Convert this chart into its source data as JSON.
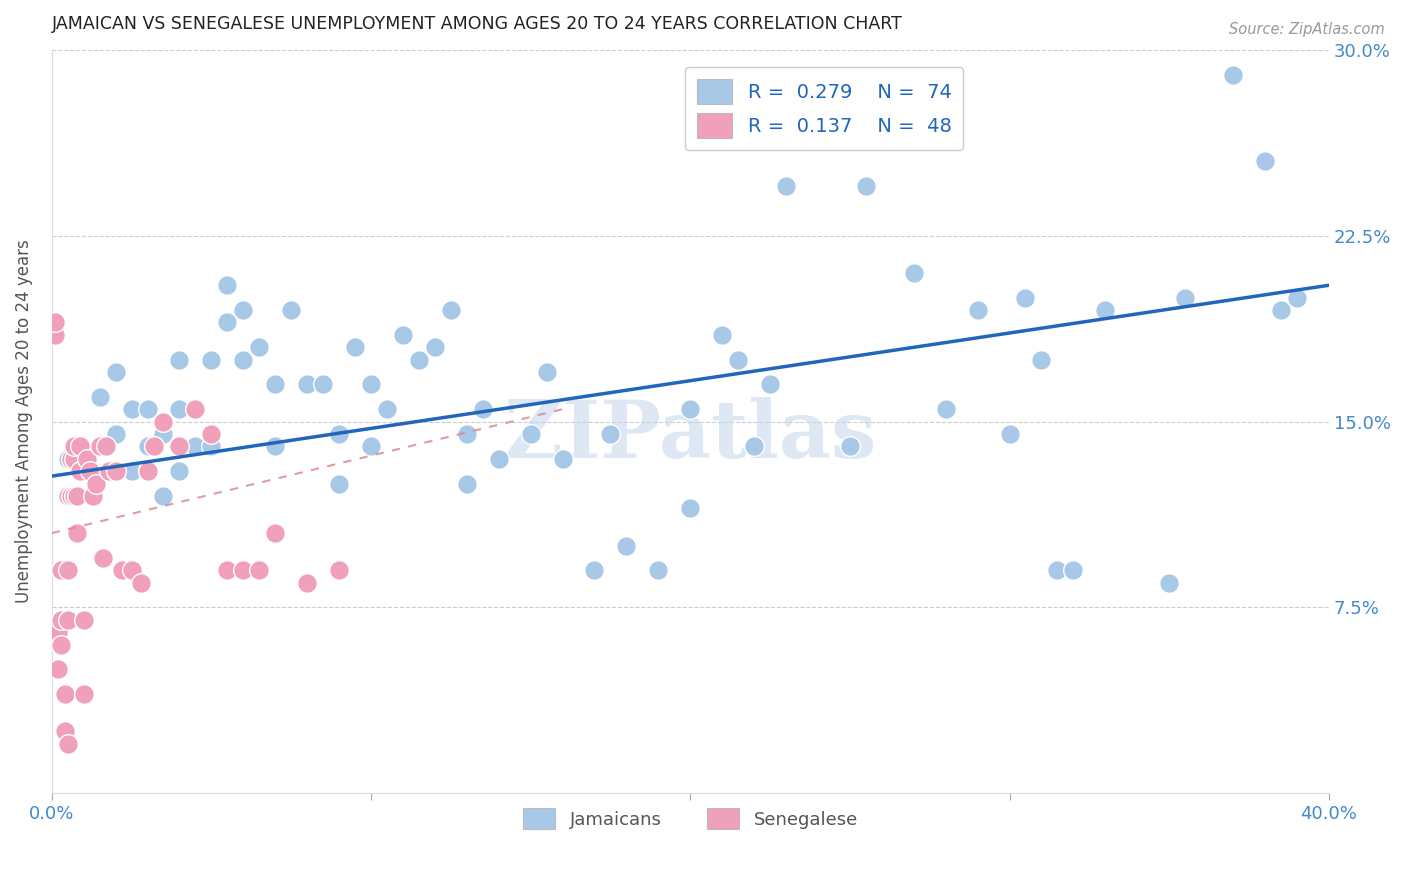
{
  "title": "JAMAICAN VS SENEGALESE UNEMPLOYMENT AMONG AGES 20 TO 24 YEARS CORRELATION CHART",
  "source": "Source: ZipAtlas.com",
  "ylabel": "Unemployment Among Ages 20 to 24 years",
  "xlabel_jamaicans": "Jamaicans",
  "xlabel_senegalese": "Senegalese",
  "xmin": 0.0,
  "xmax": 0.4,
  "ymin": 0.0,
  "ymax": 0.3,
  "ytick_positions": [
    0.0,
    0.075,
    0.15,
    0.225,
    0.3
  ],
  "ytick_labels_right": [
    "",
    "7.5%",
    "15.0%",
    "22.5%",
    "30.0%"
  ],
  "xtick_positions": [
    0.0,
    0.1,
    0.2,
    0.3,
    0.4
  ],
  "xtick_labels": [
    "0.0%",
    "",
    "",
    "",
    "40.0%"
  ],
  "legend_r1": "0.279",
  "legend_n1": "74",
  "legend_r2": "0.137",
  "legend_n2": "48",
  "blue_scatter_color": "#a8c8e8",
  "pink_scatter_color": "#f0a0b8",
  "blue_line_color": "#2266bb",
  "pink_line_color": "#dd8899",
  "title_color": "#222222",
  "axis_label_color": "#555555",
  "tick_label_color": "#4488cc",
  "legend_text_color": "#2266bb",
  "background_color": "#ffffff",
  "grid_color": "#cccccc",
  "blue_trend_x0": 0.0,
  "blue_trend_x1": 0.4,
  "blue_trend_y0": 0.128,
  "blue_trend_y1": 0.205,
  "pink_trend_x0": 0.0,
  "pink_trend_x1": 0.16,
  "pink_trend_y0": 0.105,
  "pink_trend_y1": 0.155,
  "jamaicans_x": [
    0.005,
    0.01,
    0.015,
    0.015,
    0.02,
    0.02,
    0.025,
    0.025,
    0.03,
    0.03,
    0.03,
    0.035,
    0.035,
    0.04,
    0.04,
    0.04,
    0.045,
    0.05,
    0.05,
    0.055,
    0.055,
    0.06,
    0.06,
    0.065,
    0.07,
    0.07,
    0.075,
    0.08,
    0.085,
    0.09,
    0.09,
    0.095,
    0.1,
    0.1,
    0.105,
    0.11,
    0.115,
    0.12,
    0.125,
    0.13,
    0.13,
    0.135,
    0.14,
    0.15,
    0.155,
    0.16,
    0.17,
    0.175,
    0.18,
    0.19,
    0.2,
    0.2,
    0.21,
    0.215,
    0.22,
    0.225,
    0.23,
    0.25,
    0.255,
    0.27,
    0.28,
    0.29,
    0.3,
    0.305,
    0.31,
    0.315,
    0.32,
    0.33,
    0.35,
    0.355,
    0.37,
    0.38,
    0.385,
    0.39
  ],
  "jamaicans_y": [
    0.135,
    0.13,
    0.14,
    0.16,
    0.145,
    0.17,
    0.13,
    0.155,
    0.13,
    0.14,
    0.155,
    0.12,
    0.145,
    0.13,
    0.155,
    0.175,
    0.14,
    0.14,
    0.175,
    0.19,
    0.205,
    0.175,
    0.195,
    0.18,
    0.14,
    0.165,
    0.195,
    0.165,
    0.165,
    0.125,
    0.145,
    0.18,
    0.14,
    0.165,
    0.155,
    0.185,
    0.175,
    0.18,
    0.195,
    0.125,
    0.145,
    0.155,
    0.135,
    0.145,
    0.17,
    0.135,
    0.09,
    0.145,
    0.1,
    0.09,
    0.115,
    0.155,
    0.185,
    0.175,
    0.14,
    0.165,
    0.245,
    0.14,
    0.245,
    0.21,
    0.155,
    0.195,
    0.145,
    0.2,
    0.175,
    0.09,
    0.09,
    0.195,
    0.085,
    0.2,
    0.29,
    0.255,
    0.195,
    0.2
  ],
  "senegalese_x": [
    0.001,
    0.001,
    0.002,
    0.002,
    0.003,
    0.003,
    0.003,
    0.004,
    0.004,
    0.005,
    0.005,
    0.005,
    0.005,
    0.006,
    0.006,
    0.007,
    0.007,
    0.007,
    0.008,
    0.008,
    0.009,
    0.009,
    0.01,
    0.01,
    0.011,
    0.012,
    0.013,
    0.014,
    0.015,
    0.016,
    0.017,
    0.018,
    0.02,
    0.022,
    0.025,
    0.028,
    0.03,
    0.032,
    0.035,
    0.04,
    0.045,
    0.05,
    0.055,
    0.06,
    0.065,
    0.07,
    0.08,
    0.09
  ],
  "senegalese_y": [
    0.185,
    0.19,
    0.05,
    0.065,
    0.06,
    0.07,
    0.09,
    0.025,
    0.04,
    0.02,
    0.07,
    0.09,
    0.12,
    0.12,
    0.135,
    0.12,
    0.135,
    0.14,
    0.105,
    0.12,
    0.13,
    0.14,
    0.04,
    0.07,
    0.135,
    0.13,
    0.12,
    0.125,
    0.14,
    0.095,
    0.14,
    0.13,
    0.13,
    0.09,
    0.09,
    0.085,
    0.13,
    0.14,
    0.15,
    0.14,
    0.155,
    0.145,
    0.09,
    0.09,
    0.09,
    0.105,
    0.085,
    0.09
  ],
  "watermark": "ZIPatlas",
  "watermark_color": "#c8d8ee",
  "watermark_alpha": 0.6
}
